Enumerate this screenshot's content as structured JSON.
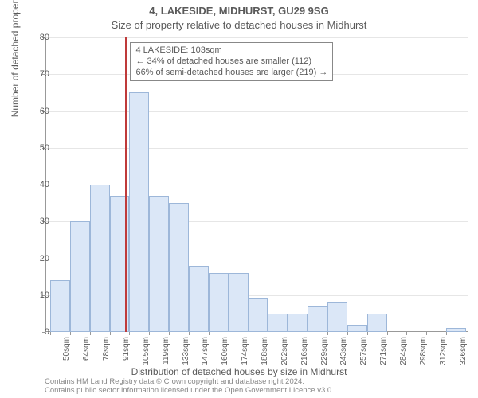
{
  "title_line1": "4, LAKESIDE, MIDHURST, GU29 9SG",
  "title_line2": "Size of property relative to detached houses in Midhurst",
  "ylabel": "Number of detached properties",
  "xlabel": "Distribution of detached houses by size in Midhurst",
  "footer_line1": "Contains HM Land Registry data © Crown copyright and database right 2024.",
  "footer_line2": "Contains public sector information licensed under the Open Government Licence v3.0.",
  "chart": {
    "type": "histogram",
    "ylim": [
      0,
      80
    ],
    "yticks": [
      0,
      10,
      20,
      30,
      40,
      50,
      60,
      70,
      80
    ],
    "grid_color": "#e6e6e6",
    "bar_fill": "#dbe7f7",
    "bar_border": "#9db7d9",
    "marker_color": "#bf3a3a",
    "background_color": "#ffffff",
    "title_fontsize": 13,
    "label_fontsize": 12,
    "tick_fontsize": 11,
    "xtick_fontsize": 10,
    "bins": [
      {
        "label": "50sqm",
        "value": 14
      },
      {
        "label": "64sqm",
        "value": 30
      },
      {
        "label": "78sqm",
        "value": 40
      },
      {
        "label": "91sqm",
        "value": 37
      },
      {
        "label": "105sqm",
        "value": 65
      },
      {
        "label": "119sqm",
        "value": 37
      },
      {
        "label": "133sqm",
        "value": 35
      },
      {
        "label": "147sqm",
        "value": 18
      },
      {
        "label": "160sqm",
        "value": 16
      },
      {
        "label": "174sqm",
        "value": 16
      },
      {
        "label": "188sqm",
        "value": 9
      },
      {
        "label": "202sqm",
        "value": 5
      },
      {
        "label": "216sqm",
        "value": 5
      },
      {
        "label": "229sqm",
        "value": 7
      },
      {
        "label": "243sqm",
        "value": 8
      },
      {
        "label": "257sqm",
        "value": 2
      },
      {
        "label": "271sqm",
        "value": 5
      },
      {
        "label": "284sqm",
        "value": 0
      },
      {
        "label": "298sqm",
        "value": 0
      },
      {
        "label": "312sqm",
        "value": 0
      },
      {
        "label": "326sqm",
        "value": 1
      }
    ],
    "marker_bin_index": 3.8,
    "annotation": {
      "line1": "4 LAKESIDE: 103sqm",
      "line2": "← 34% of detached houses are smaller (112)",
      "line3": "66% of semi-detached houses are larger (219) →"
    }
  }
}
